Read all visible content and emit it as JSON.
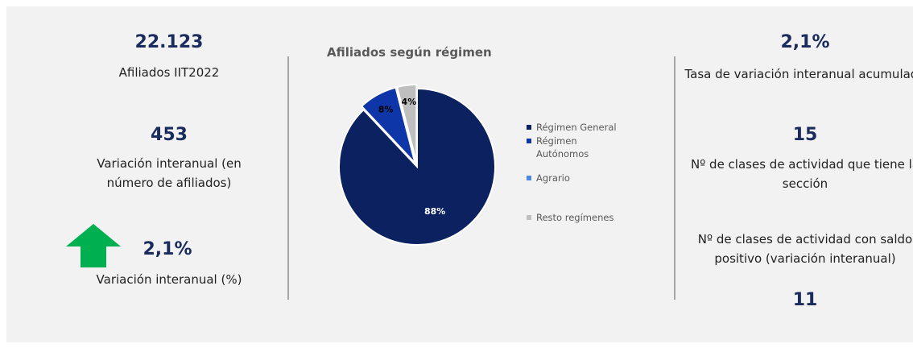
{
  "kpis": {
    "left": [
      {
        "value": "22.123",
        "label": "Afiliados IIT2022"
      },
      {
        "value": "453",
        "label": "Variación interanual (en número de afiliados)"
      },
      {
        "value": "2,1%",
        "label": "Variación interanual (%)"
      }
    ],
    "right": [
      {
        "value": "2,1%",
        "label": "Tasa de variación interanual acumulada"
      },
      {
        "value": "15",
        "label": "Nº de clases de actividad que tiene la sección"
      },
      {
        "value": "11",
        "label": "Nº de clases de actividad con saldo positivo (variación interanual)"
      }
    ]
  },
  "chart_data": {
    "type": "pie",
    "title": "Afiliados según régimen",
    "categories": [
      "Régimen General",
      "Régimen Autónomos",
      "Agrario",
      "Resto regímenes"
    ],
    "values": [
      88,
      8,
      0,
      4
    ],
    "value_labels": [
      "88%",
      "8%",
      null,
      "4%"
    ],
    "colors": [
      "#0b2160",
      "#0f36a8",
      "#4f88e0",
      "#bfbfbf"
    ],
    "legend": "right"
  }
}
